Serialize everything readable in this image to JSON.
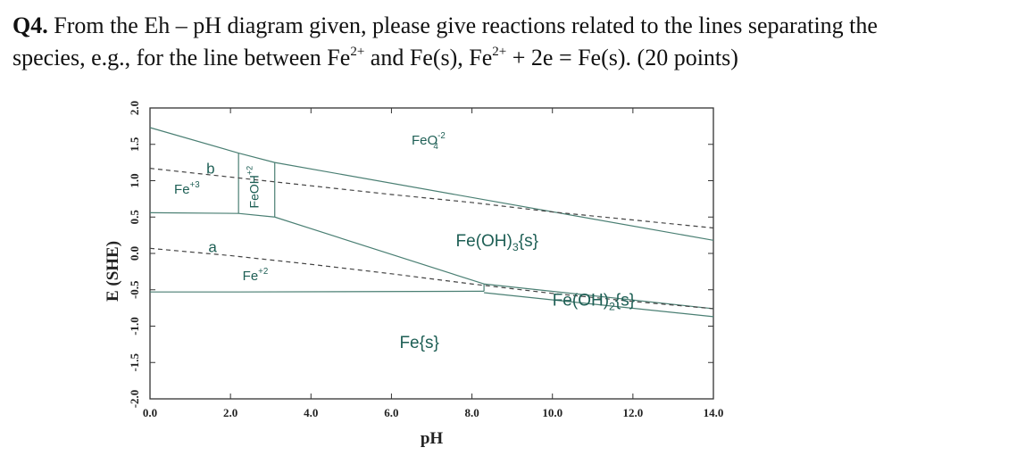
{
  "question": {
    "number": "Q4.",
    "line1": " From the Eh – pH diagram given, please give reactions related to the lines separating the",
    "line2_a": "species, e.g., for the line between Fe",
    "sup1": "2+",
    "line2_b": " and Fe(s), Fe",
    "sup2": "2+",
    "line2_c": " + 2e = Fe(s). (20 points)"
  },
  "chart_data": {
    "type": "line",
    "xlabel": "pH",
    "ylabel": "E (SHE)",
    "xlim": [
      0,
      14
    ],
    "ylim": [
      -2,
      2
    ],
    "xticks": [
      "0.0",
      "2.0",
      "4.0",
      "6.0",
      "8.0",
      "10.0",
      "12.0",
      "14.0"
    ],
    "yticks": [
      "-2.0",
      "-1.5",
      "-1.0",
      "-0.5",
      "0.0",
      "0.5",
      "1.0",
      "1.5",
      "2.0"
    ],
    "grid": false,
    "line_color": "#4a7f73",
    "boundaries": [
      {
        "name": "FeO4-2 upper boundary",
        "style": "solid",
        "points": [
          [
            0,
            1.73
          ],
          [
            2.2,
            1.38
          ],
          [
            3.1,
            1.25
          ],
          [
            14,
            0.18
          ]
        ]
      },
      {
        "name": "Fe+3 / Fe+2",
        "style": "solid",
        "points": [
          [
            0,
            0.56
          ],
          [
            2.2,
            0.55
          ],
          [
            3.1,
            0.5
          ]
        ]
      },
      {
        "name": "Fe+3 / FeOH+2",
        "style": "solid",
        "points": [
          [
            2.2,
            0.55
          ],
          [
            2.2,
            1.38
          ]
        ]
      },
      {
        "name": "FeOH+2 / Fe(OH)3",
        "style": "solid",
        "points": [
          [
            3.1,
            0.5
          ],
          [
            3.1,
            1.25
          ]
        ]
      },
      {
        "name": "Fe(OH)3 / Fe+2",
        "style": "solid",
        "points": [
          [
            3.1,
            0.5
          ],
          [
            8.3,
            -0.42
          ]
        ]
      },
      {
        "name": "Fe(OH)3 / Fe(OH)2",
        "style": "solid",
        "points": [
          [
            8.3,
            -0.42
          ],
          [
            14,
            -0.76
          ]
        ]
      },
      {
        "name": "Fe+2 / Fe(s)",
        "style": "solid",
        "points": [
          [
            0,
            -0.53
          ],
          [
            2.2,
            -0.53
          ],
          [
            8.3,
            -0.52
          ]
        ]
      },
      {
        "name": "Fe+2 / Fe(OH)2",
        "style": "solid",
        "points": [
          [
            8.3,
            -0.52
          ],
          [
            8.3,
            -0.42
          ]
        ]
      },
      {
        "name": "Fe(OH)2 / Fe(s)",
        "style": "solid",
        "points": [
          [
            8.3,
            -0.54
          ],
          [
            14,
            -0.87
          ]
        ]
      },
      {
        "name": "b",
        "style": "dashed",
        "points": [
          [
            0,
            1.17
          ],
          [
            2,
            1.05
          ],
          [
            4,
            0.93
          ],
          [
            6,
            0.81
          ],
          [
            8,
            0.7
          ],
          [
            10,
            0.57
          ],
          [
            12,
            0.46
          ],
          [
            14,
            0.35
          ]
        ]
      },
      {
        "name": "a",
        "style": "dashed",
        "points": [
          [
            0,
            0.07
          ],
          [
            2,
            -0.03
          ],
          [
            4,
            -0.15
          ],
          [
            6,
            -0.28
          ],
          [
            8,
            -0.42
          ],
          [
            10,
            -0.55
          ],
          [
            12,
            -0.66
          ],
          [
            14,
            -0.76
          ]
        ]
      }
    ],
    "labels": [
      {
        "text": "FeO",
        "sub": "4",
        "sup": "-2",
        "x": 6.5,
        "y": 1.5,
        "size": 15,
        "color": "#1e5f55"
      },
      {
        "text": "b",
        "x": 1.4,
        "y": 1.1,
        "size": 17,
        "color": "#3c8c2a"
      },
      {
        "text": "Fe",
        "sup": "+3",
        "x": 0.6,
        "y": 0.82,
        "size": 15,
        "color": "#1e5f55"
      },
      {
        "text": "FeOH",
        "sup": "+2",
        "x": 2.7,
        "y": 0.62,
        "size": 14,
        "color": "#1e5f55",
        "rotate": true
      },
      {
        "text": "a",
        "x": 1.45,
        "y": 0.02,
        "size": 17,
        "color": "#1a237e"
      },
      {
        "text": "Fe(OH)",
        "sub": "3",
        "post": "{s}",
        "x": 7.6,
        "y": 0.1,
        "size": 19,
        "color": "#1e5f55"
      },
      {
        "text": "Fe",
        "sup": "+2",
        "x": 2.3,
        "y": -0.37,
        "size": 15,
        "color": "#1e5f55"
      },
      {
        "text": "Fe(OH)",
        "sub": "2",
        "post": "{s}",
        "x": 10.0,
        "y": -0.72,
        "size": 19,
        "color": "#1e5f55"
      },
      {
        "text": "Fe{s}",
        "x": 6.2,
        "y": -1.3,
        "size": 19,
        "color": "#1e5f55"
      }
    ]
  }
}
